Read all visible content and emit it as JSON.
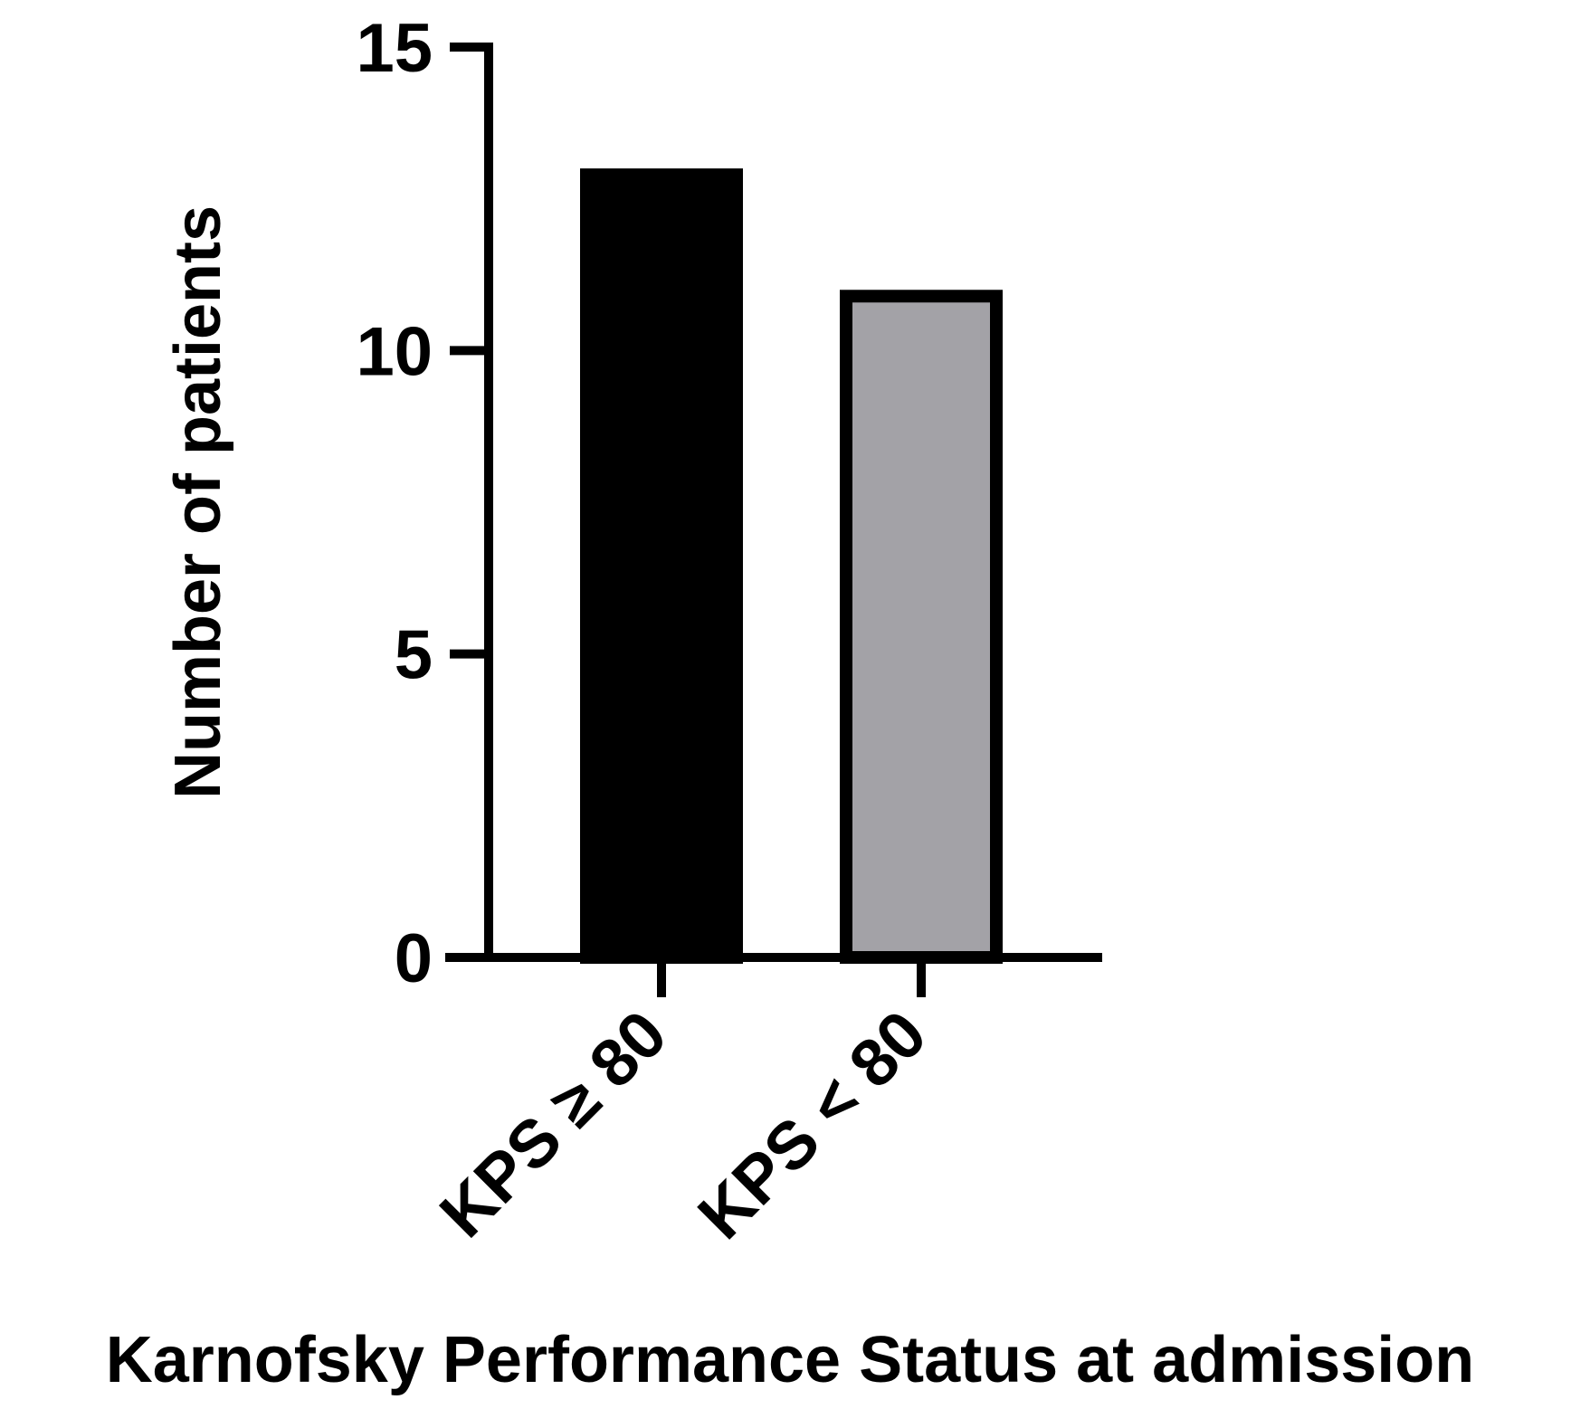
{
  "chart_data": {
    "type": "bar",
    "title": "",
    "xlabel": "Karnofsky Performance Status at admission",
    "ylabel": "Number of patients",
    "ylim": [
      0,
      15
    ],
    "yticks": [
      0,
      5,
      10,
      15
    ],
    "ytick_labels": [
      "0",
      "5",
      "10",
      "15"
    ],
    "categories": [
      "KPS ≥ 80",
      "KPS < 80"
    ],
    "values": [
      13,
      11
    ],
    "colors": [
      "#000000",
      "#a3a2a7"
    ],
    "edge_color": "#000000",
    "grid": false,
    "legend": "none"
  }
}
